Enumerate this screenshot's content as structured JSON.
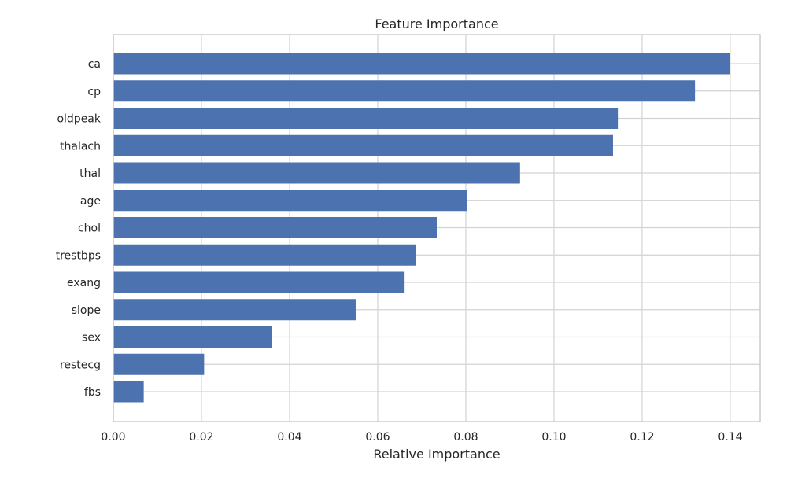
{
  "chart_data": {
    "type": "bar",
    "orientation": "horizontal",
    "title": "Feature Importance",
    "xlabel": "Relative Importance",
    "ylabel": "",
    "xlim": [
      0,
      0.1468
    ],
    "xticks": [
      "0.00",
      "0.02",
      "0.04",
      "0.06",
      "0.08",
      "0.10",
      "0.12",
      "0.14"
    ],
    "xtick_values": [
      0.0,
      0.02,
      0.04,
      0.06,
      0.08,
      0.1,
      0.12,
      0.14
    ],
    "categories": [
      "ca",
      "cp",
      "oldpeak",
      "thalach",
      "thal",
      "age",
      "chol",
      "trestbps",
      "exang",
      "slope",
      "sex",
      "restecg",
      "fbs"
    ],
    "values": [
      0.14,
      0.132,
      0.1145,
      0.1134,
      0.0923,
      0.0803,
      0.0734,
      0.0687,
      0.0661,
      0.055,
      0.036,
      0.0206,
      0.0069
    ],
    "grid": true,
    "bar_color": "#4c72b0"
  }
}
